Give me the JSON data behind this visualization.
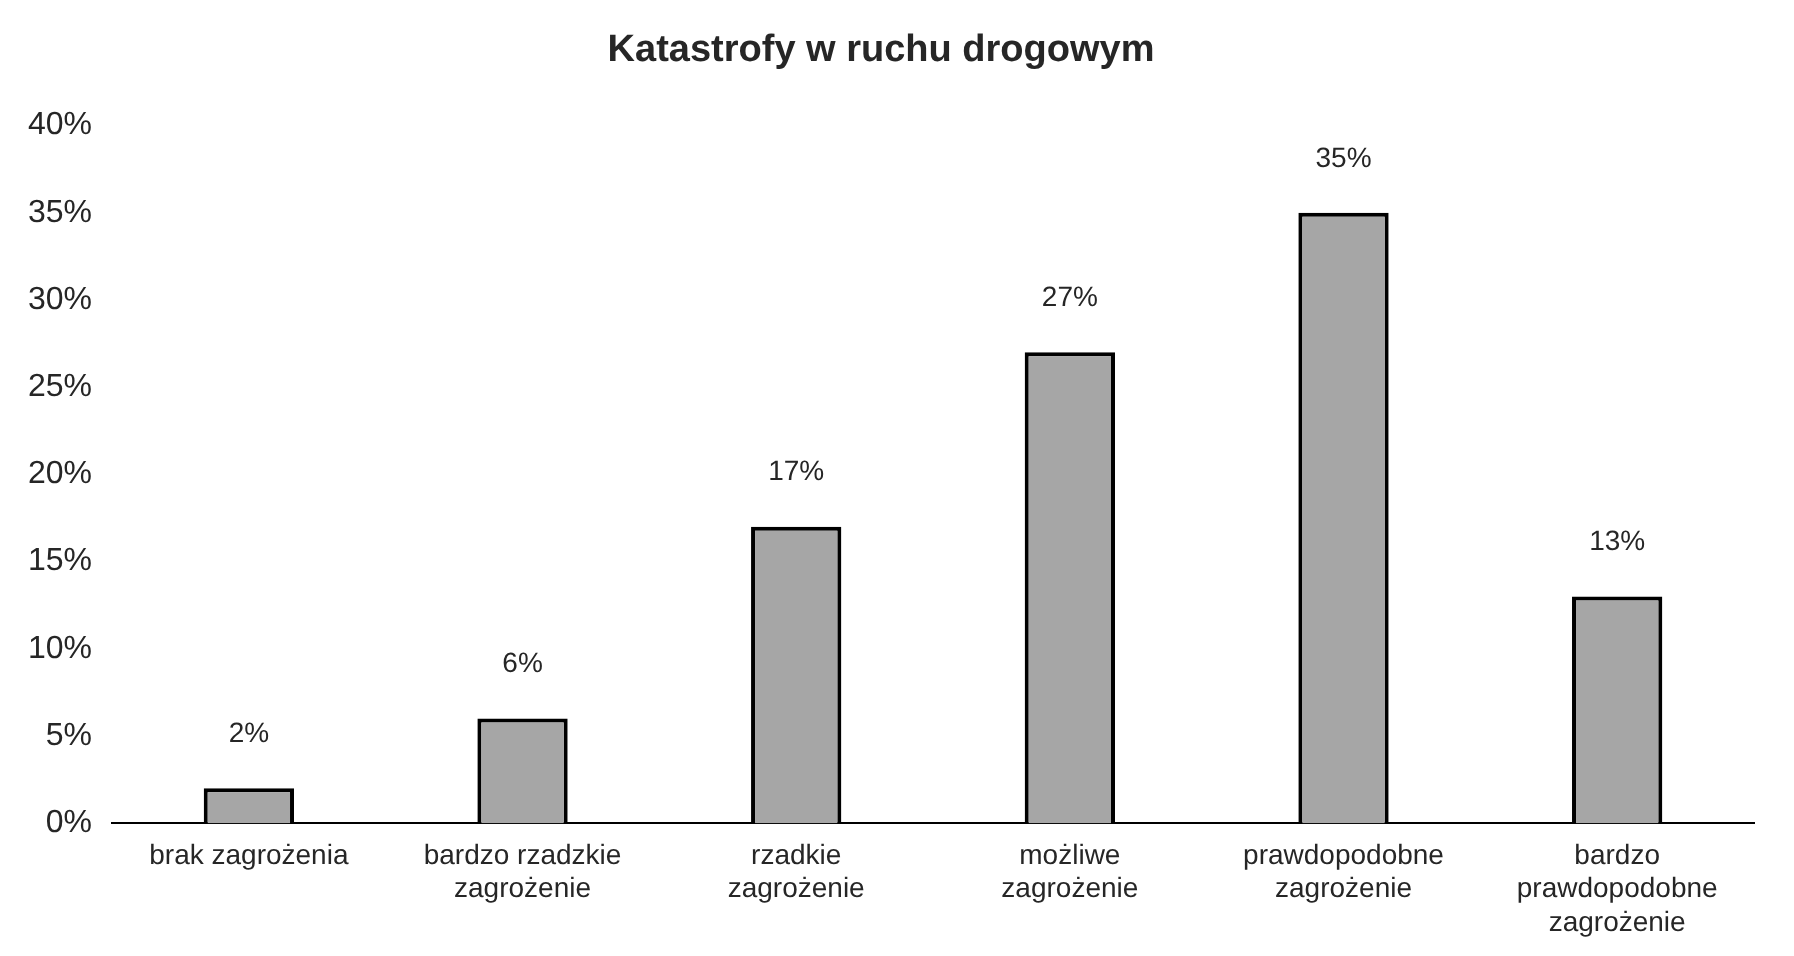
{
  "chart_data": {
    "type": "bar",
    "title": "Katastrofy w ruchu drogowym",
    "categories": [
      "brak zagrożenia",
      "bardzo rzadzkie zagrożenie",
      "rzadkie zagrożenie",
      "możliwe zagrożenie",
      "prawdopodobne zagrożenie",
      "bardzo prawdopodobne zagrożenie"
    ],
    "values": [
      2,
      6,
      17,
      27,
      35,
      13
    ],
    "value_labels": [
      "2%",
      "6%",
      "17%",
      "27%",
      "35%",
      "13%"
    ],
    "color": "#a6a6a6",
    "ylim": [
      0,
      40
    ],
    "yticks": [
      {
        "value": 0,
        "label": "0%"
      },
      {
        "value": 5,
        "label": "5%"
      },
      {
        "value": 10,
        "label": "10%"
      },
      {
        "value": 15,
        "label": "15%"
      },
      {
        "value": 20,
        "label": "20%"
      },
      {
        "value": 25,
        "label": "25%"
      },
      {
        "value": 30,
        "label": "30%"
      },
      {
        "value": 35,
        "label": "35%"
      },
      {
        "value": 40,
        "label": "40%"
      }
    ],
    "grid": false,
    "legend": false
  }
}
